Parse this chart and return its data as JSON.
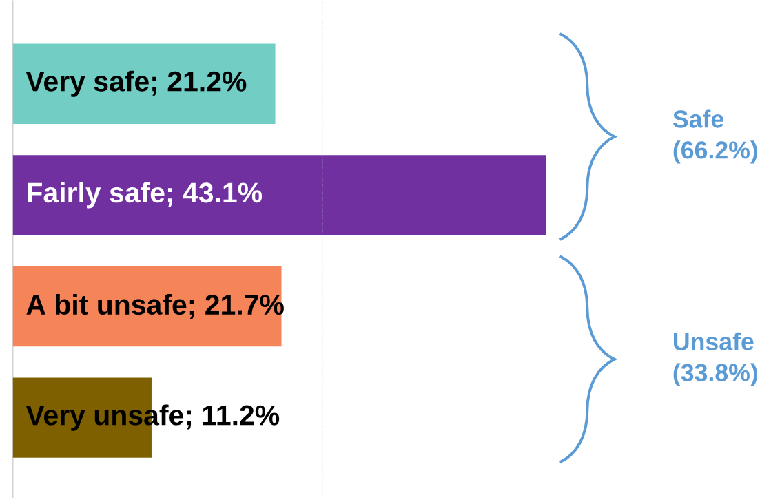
{
  "chart_data": {
    "type": "bar",
    "orientation": "horizontal",
    "categories": [
      null,
      null,
      null,
      null
    ],
    "values": [
      21.2,
      43.1,
      21.7,
      11.2
    ],
    "colors": [
      "#72cdc4",
      "#7030a0",
      "#f58458",
      "#7f6000"
    ],
    "value_labels": [
      "Very safe; 21.2%",
      "Fairly safe; 43.1%",
      "A bit unsafe; 21.7%",
      "Very unsafe; 11.2%"
    ],
    "ref_lines": [
      {
        "axis": "x",
        "value": 25,
        "color": "#c8c8c8",
        "line_style": "dotted"
      }
    ],
    "annotations": [
      "Safe (66.2%)",
      "Unsafe (33.8%)"
    ]
  }
}
